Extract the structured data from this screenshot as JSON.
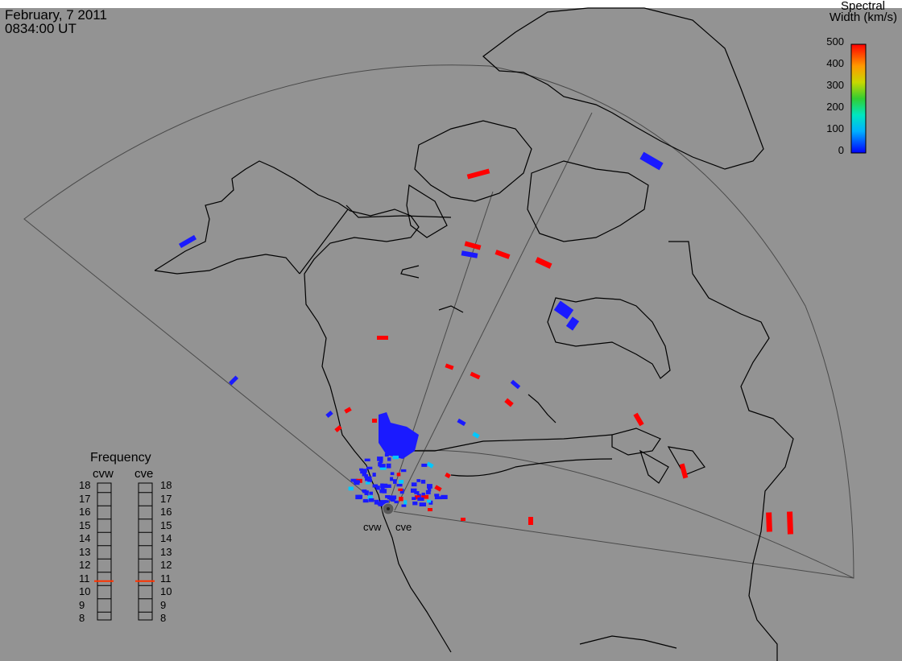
{
  "header": {
    "date": "February, 7 2011",
    "time": "0834:00 UT"
  },
  "colorbar": {
    "title_line1": "Spectral",
    "title_line2": "Width (km/s)",
    "ticks": [
      "500",
      "400",
      "300",
      "200",
      "100",
      "0"
    ],
    "range": [
      0,
      500
    ],
    "colors": [
      "#ff0000",
      "#ff9a00",
      "#e6e600",
      "#32cd32",
      "#00e6e6",
      "#0000ff"
    ]
  },
  "map": {
    "background": "#939393",
    "coastline_color": "#000000",
    "fov_color": "#4a4a4a",
    "radars": [
      {
        "id": "cvw",
        "label": "cvw"
      },
      {
        "id": "cve",
        "label": "cve"
      }
    ]
  },
  "frequency_panel": {
    "title": "Frequency",
    "columns": [
      {
        "label": "cvw",
        "value_mhz": 10.8
      },
      {
        "label": "cve",
        "value_mhz": 10.8
      }
    ],
    "scale": [
      "18",
      "17",
      "16",
      "15",
      "14",
      "13",
      "12",
      "11",
      "10",
      "9",
      "8"
    ],
    "marker_color": "#ff3300"
  }
}
